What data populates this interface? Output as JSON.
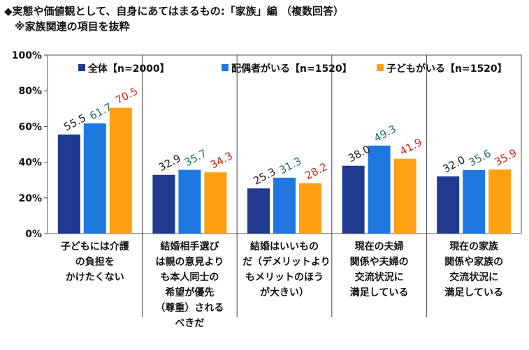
{
  "chart_data": {
    "type": "bar",
    "title": "◆実態や価値観として、自身にあてはまるもの:「家族」編 （複数回答）\n　※家族関連の項目を抜粋",
    "categories": [
      "子どもには介護\nの負担を\nかけたくない",
      "結婚相手選び\nは親の意見より\nも本人同士の\n希望が優先\n（尊重）される\nべきだ",
      "結婚はいいもの\nだ（デメリットより\nもメリットのほう\nが大きい）",
      "現在の夫婦\n関係や夫婦の\n交流状況に\n満足している",
      "現在の家族\n関係や家族の\n交流状況に\n満足している"
    ],
    "series": [
      {
        "name": "全体【n=2000】",
        "color": "#1f3a8f",
        "label_color": "#222222",
        "values": [
          55.5,
          32.9,
          25.3,
          38.0,
          32.0
        ],
        "labels": [
          "55.5",
          "32.9",
          "25.3",
          "38.0",
          "32.0"
        ]
      },
      {
        "name": "配偶者がいる【n=1520】",
        "color": "#1e78e0",
        "label_color": "#1f6f6f",
        "values": [
          61.7,
          35.7,
          31.3,
          49.3,
          35.6
        ],
        "labels": [
          "61.7",
          "35.7",
          "31.3",
          "49.3",
          "35.6"
        ]
      },
      {
        "name": "子どもがいる【n=1520】",
        "color": "#ffa010",
        "label_color": "#d0261e",
        "values": [
          70.5,
          34.3,
          28.2,
          41.9,
          35.9
        ],
        "labels": [
          "70.5",
          "34.3",
          "28.2",
          "41.9",
          "35.9"
        ]
      }
    ],
    "yticks": [
      "0%",
      "20%",
      "40%",
      "60%",
      "80%",
      "100%"
    ],
    "ylim": [
      0,
      100
    ],
    "grid": false,
    "legend": "top"
  }
}
